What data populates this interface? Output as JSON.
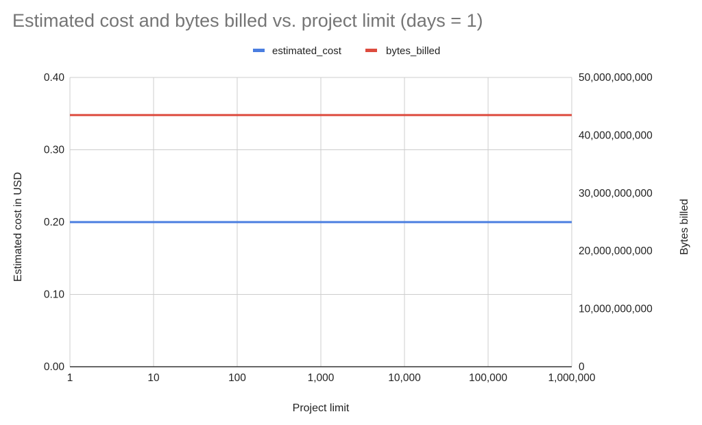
{
  "chart_data": {
    "type": "line",
    "title": "Estimated cost and bytes billed vs. project limit (days = 1)",
    "xlabel": "Project limit",
    "ylabel_left": "Estimated cost in USD",
    "ylabel_right": "Bytes billed",
    "x_scale": "log",
    "x": [
      1,
      10,
      100,
      1000,
      10000,
      100000,
      1000000
    ],
    "x_tick_labels": [
      "1",
      "10",
      "100",
      "1,000",
      "10,000",
      "100,000",
      "1,000,000"
    ],
    "ylim_left": [
      0,
      0.4
    ],
    "y_left_tick_labels": [
      "0.00",
      "0.10",
      "0.20",
      "0.30",
      "0.40"
    ],
    "ylim_right": [
      0,
      50000000000
    ],
    "y_right_tick_labels": [
      "0",
      "10,000,000,000",
      "20,000,000,000",
      "30,000,000,000",
      "40,000,000,000",
      "50,000,000,000"
    ],
    "legend_position": "top",
    "grid": true,
    "series": [
      {
        "name": "estimated_cost",
        "axis": "left",
        "color": "#4a7ee0",
        "values": [
          0.2,
          0.2,
          0.2,
          0.2,
          0.2,
          0.2,
          0.2
        ]
      },
      {
        "name": "bytes_billed",
        "axis": "right",
        "color": "#dd4b3e",
        "values": [
          43500000000,
          43500000000,
          43500000000,
          43500000000,
          43500000000,
          43500000000,
          43500000000
        ]
      }
    ]
  }
}
